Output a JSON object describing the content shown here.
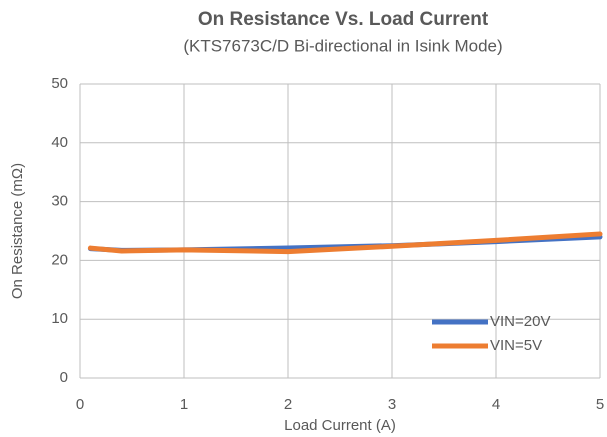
{
  "chart_data": {
    "type": "line",
    "title": "On Resistance Vs. Load Current",
    "subtitle": "(KTS7673C/D Bi-directional in Isink Mode)",
    "x_label": "Load Current (A)",
    "y_label": "On Resistance (mΩ)",
    "x": [
      0.1,
      0.4,
      1,
      2,
      3,
      4,
      5
    ],
    "series": [
      {
        "name": "VIN=20V",
        "color": "#4472c4",
        "values": [
          22.0,
          21.7,
          21.8,
          22.1,
          22.5,
          23.2,
          24.0
        ]
      },
      {
        "name": "VIN=5V",
        "color": "#ed7d31",
        "values": [
          22.1,
          21.6,
          21.8,
          21.5,
          22.4,
          23.4,
          24.5
        ]
      }
    ],
    "xlim": [
      0,
      5
    ],
    "xticks": [
      0,
      1,
      2,
      3,
      4,
      5
    ],
    "ylim": [
      0,
      50
    ],
    "yticks": [
      0,
      10,
      20,
      30,
      40,
      50
    ],
    "grid": true,
    "legend": "lower right"
  }
}
